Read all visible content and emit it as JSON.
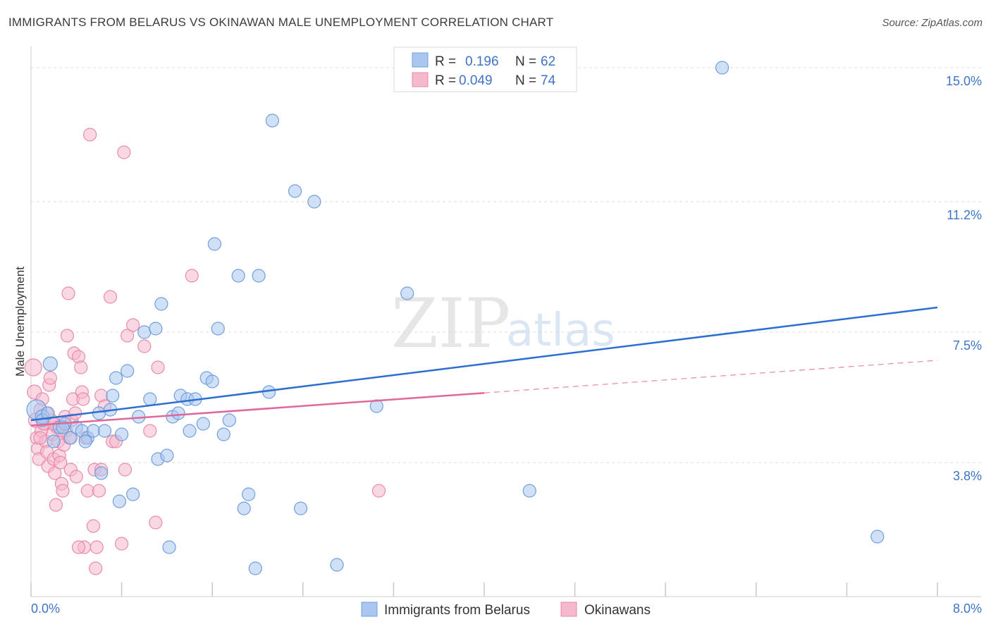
{
  "header": {
    "title": "IMMIGRANTS FROM BELARUS VS OKINAWAN MALE UNEMPLOYMENT CORRELATION CHART",
    "source": "Source: ZipAtlas.com"
  },
  "watermark": {
    "zip": "ZIP",
    "atlas": "atlas"
  },
  "legend": {
    "r_label": "R =",
    "n_label": "N =",
    "rows": [
      {
        "r": "0.196",
        "n": "62"
      },
      {
        "r": "0.049",
        "n": "74"
      }
    ]
  },
  "colors": {
    "blue_fill": "#a9c7ee",
    "blue_stroke": "#6f9fdc",
    "blue_line": "#2d6fd0",
    "pink_fill": "#f5b8cc",
    "pink_stroke": "#e88aaa",
    "pink_line": "#e0679a",
    "grid": "#dcdcdc",
    "tick_text": "#3d74c6"
  },
  "chart_data": {
    "type": "scatter",
    "title": "IMMIGRANTS FROM BELARUS VS OKINAWAN MALE UNEMPLOYMENT CORRELATION CHART",
    "xlabel": "",
    "ylabel": "Male Unemployment",
    "xlim": [
      0,
      8
    ],
    "ylim": [
      0,
      15.6
    ],
    "x_tick_labels": [
      "0.0%",
      "8.0%"
    ],
    "y_ticks": [
      3.8,
      7.5,
      11.2,
      15.0
    ],
    "y_tick_labels": [
      "3.8%",
      "7.5%",
      "11.2%",
      "15.0%"
    ],
    "series": [
      {
        "name": "Immigrants from Belarus",
        "color": "blue",
        "trend": {
          "x0": 0,
          "y0": 5.0,
          "x1": 8.0,
          "y1": 8.2,
          "dashed_from": null
        },
        "points": [
          [
            0.05,
            5.3,
            14
          ],
          [
            0.1,
            5.1,
            10
          ],
          [
            0.17,
            6.6,
            10
          ],
          [
            0.1,
            5.0,
            9
          ],
          [
            0.2,
            4.4,
            9
          ],
          [
            0.25,
            4.8,
            9
          ],
          [
            0.3,
            4.9,
            9
          ],
          [
            0.35,
            4.5,
            9
          ],
          [
            0.4,
            4.8,
            9
          ],
          [
            0.45,
            4.7,
            9
          ],
          [
            0.5,
            4.5,
            9
          ],
          [
            0.55,
            4.7,
            9
          ],
          [
            0.6,
            5.2,
            9
          ],
          [
            0.62,
            3.5,
            9
          ],
          [
            0.65,
            4.7,
            9
          ],
          [
            0.7,
            5.3,
            9
          ],
          [
            0.72,
            5.7,
            9
          ],
          [
            0.75,
            6.2,
            9
          ],
          [
            0.78,
            2.7,
            9
          ],
          [
            0.8,
            4.6,
            9
          ],
          [
            0.85,
            6.4,
            9
          ],
          [
            0.9,
            2.9,
            9
          ],
          [
            0.95,
            5.1,
            9
          ],
          [
            1.0,
            7.5,
            9
          ],
          [
            1.05,
            5.6,
            9
          ],
          [
            1.1,
            7.6,
            9
          ],
          [
            1.12,
            3.9,
            9
          ],
          [
            1.15,
            8.3,
            9
          ],
          [
            1.2,
            4.0,
            9
          ],
          [
            1.22,
            1.4,
            9
          ],
          [
            1.25,
            5.1,
            9
          ],
          [
            1.3,
            5.2,
            9
          ],
          [
            1.32,
            5.7,
            9
          ],
          [
            1.38,
            5.6,
            9
          ],
          [
            1.4,
            4.7,
            9
          ],
          [
            1.45,
            5.6,
            9
          ],
          [
            1.52,
            4.9,
            9
          ],
          [
            1.55,
            6.2,
            9
          ],
          [
            1.6,
            6.1,
            9
          ],
          [
            1.62,
            10.0,
            9
          ],
          [
            1.65,
            7.6,
            9
          ],
          [
            1.7,
            4.6,
            9
          ],
          [
            1.75,
            5.0,
            9
          ],
          [
            1.83,
            9.1,
            9
          ],
          [
            1.88,
            2.5,
            9
          ],
          [
            1.92,
            2.9,
            9
          ],
          [
            1.98,
            0.8,
            9
          ],
          [
            2.01,
            9.1,
            9
          ],
          [
            2.1,
            5.8,
            9
          ],
          [
            2.13,
            13.5,
            9
          ],
          [
            2.33,
            11.5,
            9
          ],
          [
            2.38,
            2.5,
            9
          ],
          [
            2.5,
            11.2,
            9
          ],
          [
            2.7,
            0.9,
            9
          ],
          [
            3.05,
            5.4,
            9
          ],
          [
            3.32,
            8.6,
            9
          ],
          [
            4.4,
            3.0,
            9
          ],
          [
            6.1,
            15.0,
            9
          ],
          [
            7.47,
            1.7,
            9
          ],
          [
            0.28,
            4.8,
            9
          ],
          [
            0.48,
            4.4,
            9
          ],
          [
            0.15,
            5.2,
            9
          ]
        ]
      },
      {
        "name": "Okinawans",
        "color": "pink",
        "trend": {
          "x0": 0,
          "y0": 4.85,
          "x1": 8.0,
          "y1": 6.7,
          "dashed_from": 4.0
        },
        "points": [
          [
            0.02,
            6.5,
            12
          ],
          [
            0.03,
            5.8,
            10
          ],
          [
            0.04,
            5.0,
            10
          ],
          [
            0.05,
            4.5,
            9
          ],
          [
            0.06,
            4.2,
            9
          ],
          [
            0.07,
            3.9,
            9
          ],
          [
            0.08,
            5.3,
            9
          ],
          [
            0.09,
            4.7,
            9
          ],
          [
            0.1,
            5.6,
            9
          ],
          [
            0.12,
            4.9,
            9
          ],
          [
            0.13,
            4.4,
            9
          ],
          [
            0.14,
            4.1,
            9
          ],
          [
            0.15,
            3.7,
            9
          ],
          [
            0.16,
            6.0,
            9
          ],
          [
            0.17,
            6.2,
            9
          ],
          [
            0.18,
            5.0,
            9
          ],
          [
            0.19,
            4.6,
            9
          ],
          [
            0.2,
            3.9,
            9
          ],
          [
            0.21,
            3.5,
            9
          ],
          [
            0.22,
            2.6,
            9
          ],
          [
            0.23,
            4.8,
            9
          ],
          [
            0.24,
            4.4,
            9
          ],
          [
            0.25,
            4.0,
            9
          ],
          [
            0.26,
            3.8,
            9
          ],
          [
            0.27,
            3.2,
            9
          ],
          [
            0.28,
            3.0,
            9
          ],
          [
            0.29,
            4.3,
            9
          ],
          [
            0.3,
            5.1,
            9
          ],
          [
            0.31,
            4.7,
            9
          ],
          [
            0.32,
            7.4,
            9
          ],
          [
            0.33,
            8.6,
            9
          ],
          [
            0.34,
            4.5,
            9
          ],
          [
            0.35,
            3.6,
            9
          ],
          [
            0.36,
            5.0,
            9
          ],
          [
            0.37,
            5.6,
            9
          ],
          [
            0.38,
            6.9,
            9
          ],
          [
            0.39,
            5.2,
            9
          ],
          [
            0.4,
            3.4,
            9
          ],
          [
            0.42,
            6.8,
            9
          ],
          [
            0.44,
            6.5,
            9
          ],
          [
            0.45,
            5.8,
            9
          ],
          [
            0.46,
            5.6,
            9
          ],
          [
            0.48,
            4.5,
            9
          ],
          [
            0.5,
            3.0,
            9
          ],
          [
            0.52,
            13.1,
            9
          ],
          [
            0.55,
            2.0,
            9
          ],
          [
            0.56,
            3.6,
            9
          ],
          [
            0.58,
            1.4,
            9
          ],
          [
            0.6,
            3.0,
            9
          ],
          [
            0.62,
            5.7,
            9
          ],
          [
            0.65,
            5.4,
            9
          ],
          [
            0.7,
            8.5,
            9
          ],
          [
            0.72,
            4.4,
            9
          ],
          [
            0.75,
            4.4,
            9
          ],
          [
            0.8,
            1.5,
            9
          ],
          [
            0.82,
            12.6,
            9
          ],
          [
            0.83,
            3.6,
            9
          ],
          [
            0.85,
            7.4,
            9
          ],
          [
            0.9,
            7.7,
            9
          ],
          [
            1.0,
            7.1,
            9
          ],
          [
            1.05,
            4.7,
            9
          ],
          [
            1.1,
            2.1,
            9
          ],
          [
            1.12,
            6.5,
            9
          ],
          [
            1.42,
            9.1,
            9
          ],
          [
            3.07,
            3.0,
            9
          ],
          [
            0.57,
            0.8,
            9
          ],
          [
            0.47,
            1.4,
            9
          ],
          [
            0.42,
            1.4,
            9
          ],
          [
            0.11,
            4.9,
            9
          ],
          [
            0.2,
            4.9,
            9
          ],
          [
            0.27,
            4.7,
            9
          ],
          [
            0.14,
            5.2,
            9
          ],
          [
            0.62,
            3.6,
            9
          ],
          [
            0.08,
            4.5,
            9
          ]
        ]
      }
    ]
  },
  "bottom_legend": [
    {
      "label": "Immigrants from Belarus"
    },
    {
      "label": "Okinawans"
    }
  ]
}
